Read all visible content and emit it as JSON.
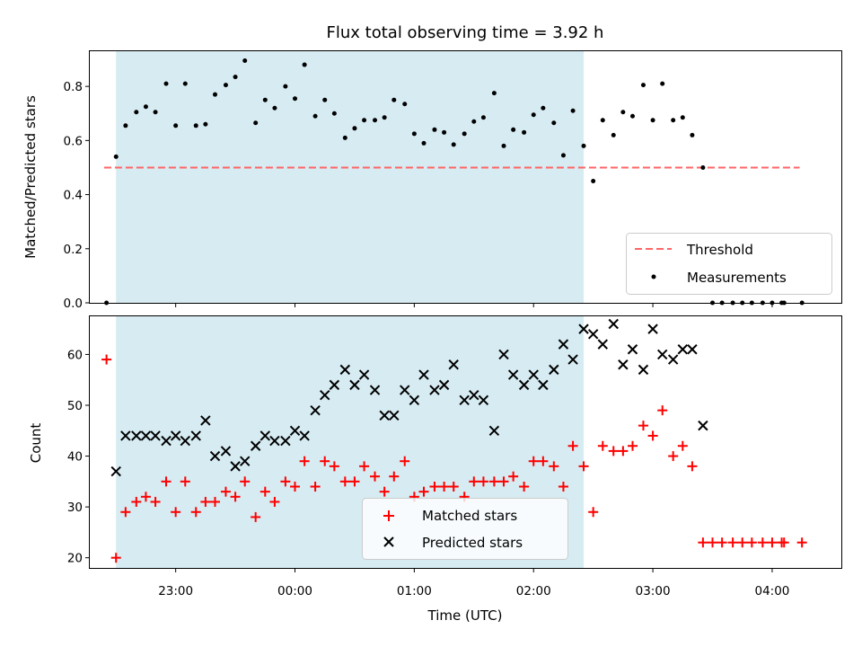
{
  "chart_data": [
    {
      "type": "scatter",
      "title": "Flux total observing time = 3.92 h",
      "ylabel": "Matched/Predicted stars",
      "ylim": [
        0,
        0.93
      ],
      "yticks": [
        "0.0",
        "0.2",
        "0.4",
        "0.6",
        "0.8"
      ],
      "ytick_values": [
        0,
        0.2,
        0.4,
        0.6,
        0.8
      ],
      "xlim_hours": [
        -1.72,
        4.58
      ],
      "observing_window_hours": [
        -1.5,
        2.42
      ],
      "highlight_color": "#add8e6",
      "threshold": {
        "name": "Threshold",
        "value": 0.5,
        "x_range_hours": [
          -1.6,
          4.23
        ],
        "color": "#ff6666"
      },
      "legend_position": "lower right",
      "series": [
        {
          "name": "Measurements",
          "color": "#000000",
          "x_hours": [
            -1.58,
            -1.5,
            -1.42,
            -1.33,
            -1.25,
            -1.17,
            -1.08,
            -1.0,
            -0.92,
            -0.83,
            -0.75,
            -0.67,
            -0.58,
            -0.5,
            -0.42,
            -0.33,
            -0.25,
            -0.17,
            -0.08,
            0.0,
            0.08,
            0.17,
            0.25,
            0.33,
            0.42,
            0.5,
            0.58,
            0.67,
            0.75,
            0.83,
            0.92,
            1.0,
            1.08,
            1.17,
            1.25,
            1.33,
            1.42,
            1.5,
            1.58,
            1.67,
            1.75,
            1.83,
            1.92,
            2.0,
            2.08,
            2.17,
            2.25,
            2.33,
            2.42,
            2.5,
            2.58,
            2.67,
            2.75,
            2.83,
            2.92,
            3.0,
            3.08,
            3.17,
            3.25,
            3.33,
            3.42,
            3.5,
            3.58,
            3.67,
            3.75,
            3.83,
            3.92,
            4.0,
            4.08,
            4.1,
            4.25
          ],
          "y": [
            0.0,
            0.54,
            0.655,
            0.705,
            0.725,
            0.705,
            0.81,
            0.655,
            0.81,
            0.655,
            0.66,
            0.77,
            0.805,
            0.835,
            0.895,
            0.665,
            0.75,
            0.72,
            0.8,
            0.755,
            0.88,
            0.69,
            0.75,
            0.7,
            0.61,
            0.645,
            0.675,
            0.675,
            0.685,
            0.75,
            0.735,
            0.625,
            0.59,
            0.64,
            0.63,
            0.585,
            0.625,
            0.67,
            0.685,
            0.775,
            0.58,
            0.64,
            0.63,
            0.695,
            0.72,
            0.665,
            0.545,
            0.71,
            0.58,
            0.45,
            0.675,
            0.62,
            0.705,
            0.69,
            0.805,
            0.675,
            0.81,
            0.675,
            0.685,
            0.62,
            0.5,
            0.0,
            0.0,
            0.0,
            0.0,
            0.0,
            0.0,
            0.0,
            0.0,
            0.0,
            0.0
          ]
        }
      ]
    },
    {
      "type": "scatter",
      "xlabel": "Time (UTC)",
      "ylabel": "Count",
      "ylim": [
        18,
        67.5
      ],
      "yticks": [
        "20",
        "30",
        "40",
        "50",
        "60"
      ],
      "ytick_values": [
        20,
        30,
        40,
        50,
        60
      ],
      "xlim_hours": [
        -1.72,
        4.58
      ],
      "observing_window_hours": [
        -1.5,
        2.42
      ],
      "highlight_color": "#add8e6",
      "xticks": [
        "23:00",
        "00:00",
        "01:00",
        "02:00",
        "03:00",
        "04:00"
      ],
      "xtick_values": [
        -1,
        0,
        1,
        2,
        3,
        4
      ],
      "legend_position": "lower center",
      "series": [
        {
          "name": "Matched stars",
          "marker": "+",
          "color": "#ff0000",
          "x_hours": [
            -1.58,
            -1.5,
            -1.42,
            -1.33,
            -1.25,
            -1.17,
            -1.08,
            -1.0,
            -0.92,
            -0.83,
            -0.75,
            -0.67,
            -0.58,
            -0.5,
            -0.42,
            -0.33,
            -0.25,
            -0.17,
            -0.08,
            0.0,
            0.08,
            0.17,
            0.25,
            0.33,
            0.42,
            0.5,
            0.58,
            0.67,
            0.75,
            0.83,
            0.92,
            1.0,
            1.08,
            1.17,
            1.25,
            1.33,
            1.42,
            1.5,
            1.58,
            1.67,
            1.75,
            1.83,
            1.92,
            2.0,
            2.08,
            2.17,
            2.25,
            2.33,
            2.42,
            2.5,
            2.58,
            2.67,
            2.75,
            2.83,
            2.92,
            3.0,
            3.08,
            3.17,
            3.25,
            3.33,
            3.42,
            3.5,
            3.58,
            3.67,
            3.75,
            3.83,
            3.92,
            4.0,
            4.08,
            4.1,
            4.25
          ],
          "y": [
            59,
            20,
            29,
            31,
            32,
            31,
            35,
            29,
            35,
            29,
            31,
            31,
            33,
            32,
            35,
            28,
            33,
            31,
            35,
            34,
            39,
            34,
            39,
            38,
            35,
            35,
            38,
            36,
            33,
            36,
            39,
            32,
            33,
            34,
            34,
            34,
            32,
            35,
            35,
            35,
            35,
            36,
            34,
            39,
            39,
            38,
            34,
            42,
            38,
            29,
            42,
            41,
            41,
            42,
            46,
            44,
            49,
            40,
            42,
            38,
            23,
            23,
            23,
            23,
            23,
            23,
            23,
            23,
            23,
            23,
            23
          ]
        },
        {
          "name": "Predicted stars",
          "marker": "x",
          "color": "#000000",
          "x_hours": [
            -1.5,
            -1.42,
            -1.33,
            -1.25,
            -1.17,
            -1.08,
            -1.0,
            -0.92,
            -0.83,
            -0.75,
            -0.67,
            -0.58,
            -0.5,
            -0.42,
            -0.33,
            -0.25,
            -0.17,
            -0.08,
            0.0,
            0.08,
            0.17,
            0.25,
            0.33,
            0.42,
            0.5,
            0.58,
            0.67,
            0.75,
            0.83,
            0.92,
            1.0,
            1.08,
            1.17,
            1.25,
            1.33,
            1.42,
            1.5,
            1.58,
            1.67,
            1.75,
            1.83,
            1.92,
            2.0,
            2.08,
            2.17,
            2.25,
            2.33,
            2.42,
            2.5,
            2.58,
            2.67,
            2.75,
            2.83,
            2.92,
            3.0,
            3.08,
            3.17,
            3.25,
            3.33,
            3.42
          ],
          "y": [
            37,
            44,
            44,
            44,
            44,
            43,
            44,
            43,
            44,
            47,
            40,
            41,
            38,
            39,
            42,
            44,
            43,
            43,
            45,
            44,
            49,
            52,
            54,
            57,
            54,
            56,
            53,
            48,
            48,
            53,
            51,
            56,
            53,
            54,
            58,
            51,
            52,
            51,
            45,
            60,
            56,
            54,
            56,
            54,
            57,
            62,
            59,
            65,
            64,
            62,
            66,
            58,
            61,
            57,
            65,
            60,
            59,
            61,
            61,
            46
          ]
        }
      ]
    }
  ]
}
